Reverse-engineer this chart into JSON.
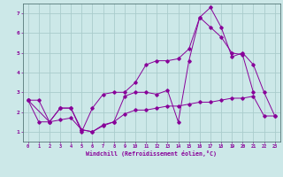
{
  "xlabel": "Windchill (Refroidissement éolien,°C)",
  "bg_color": "#cce8e8",
  "grid_color": "#aacccc",
  "line_color": "#880099",
  "xlim": [
    -0.5,
    23.5
  ],
  "ylim": [
    0.5,
    7.5
  ],
  "xticks": [
    0,
    1,
    2,
    3,
    4,
    5,
    6,
    7,
    8,
    9,
    10,
    11,
    12,
    13,
    14,
    15,
    16,
    17,
    18,
    19,
    20,
    21,
    22,
    23
  ],
  "yticks": [
    1,
    2,
    3,
    4,
    5,
    6,
    7
  ],
  "line1_x": [
    0,
    1,
    2,
    3,
    4,
    5,
    6,
    7,
    8,
    9,
    10,
    11,
    12,
    13,
    14,
    15,
    16,
    17,
    18,
    19,
    20,
    21
  ],
  "line1_y": [
    2.6,
    2.6,
    1.5,
    2.2,
    2.2,
    1.0,
    2.2,
    2.9,
    3.0,
    3.0,
    3.5,
    4.4,
    4.6,
    4.6,
    4.7,
    5.2,
    6.8,
    6.3,
    5.8,
    5.0,
    4.9,
    3.0
  ],
  "line2_x": [
    0,
    2,
    3,
    4,
    5,
    6,
    7,
    8,
    9,
    10,
    11,
    12,
    13,
    14,
    15,
    16,
    17,
    18,
    19,
    20,
    21,
    22,
    23
  ],
  "line2_y": [
    2.6,
    1.5,
    2.2,
    2.2,
    1.1,
    1.0,
    1.3,
    1.5,
    2.8,
    3.0,
    3.0,
    2.9,
    3.1,
    1.5,
    4.6,
    6.8,
    7.3,
    6.3,
    4.8,
    5.0,
    4.4,
    3.0,
    1.8
  ],
  "line3_x": [
    0,
    1,
    2,
    3,
    4,
    5,
    6,
    7,
    8,
    9,
    10,
    11,
    12,
    13,
    14,
    15,
    16,
    17,
    18,
    19,
    20,
    21,
    22,
    23
  ],
  "line3_y": [
    2.6,
    1.5,
    1.5,
    1.6,
    1.7,
    1.1,
    1.0,
    1.35,
    1.5,
    1.9,
    2.1,
    2.1,
    2.2,
    2.3,
    2.3,
    2.4,
    2.5,
    2.5,
    2.6,
    2.7,
    2.7,
    2.8,
    1.8,
    1.8
  ]
}
